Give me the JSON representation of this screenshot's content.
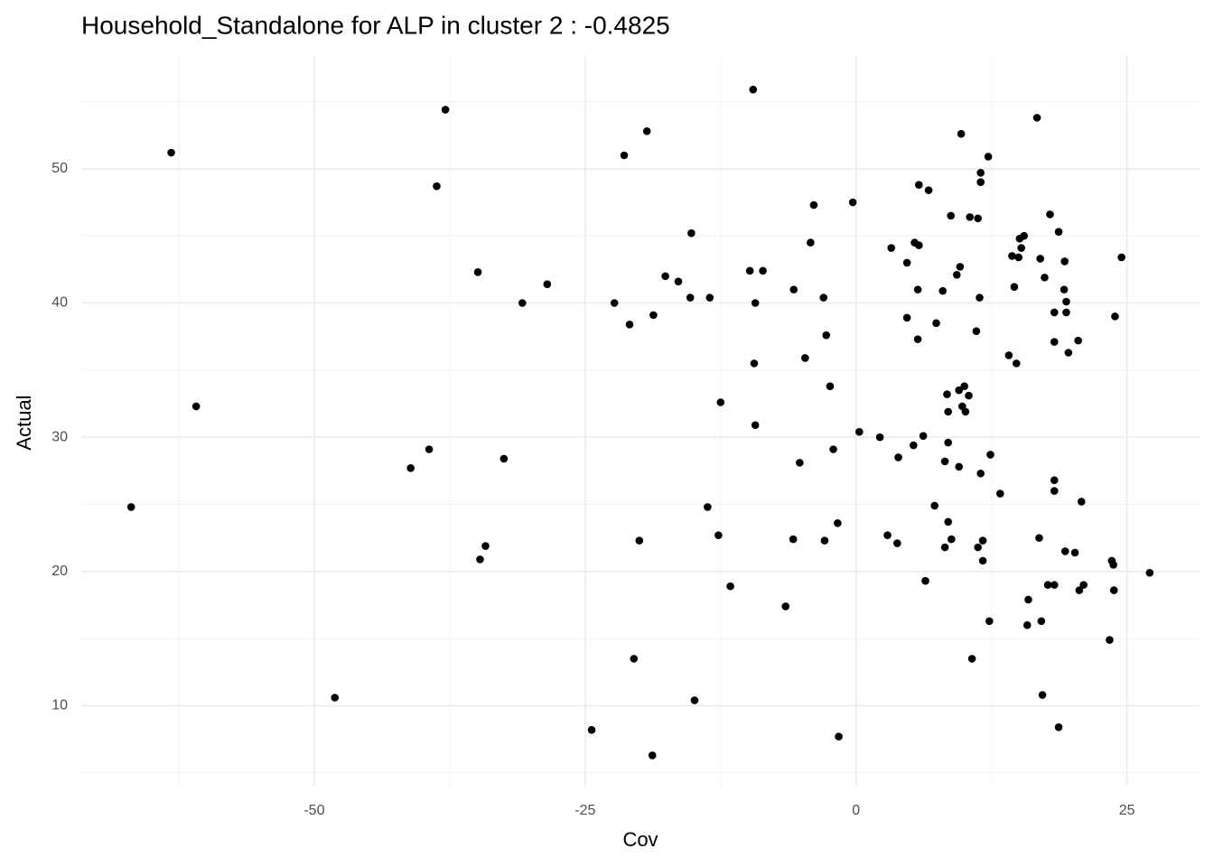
{
  "chart_data": {
    "type": "scatter",
    "title": "Household_Standalone for ALP in cluster 2 : -0.4825",
    "x_label": "Cov",
    "y_label": "Actual",
    "xlim": [
      -71.5,
      31.7
    ],
    "ylim": [
      4.04,
      58.4
    ],
    "xticks": [
      -50,
      -25,
      0,
      25
    ],
    "yticks": [
      10,
      20,
      30,
      40,
      50
    ],
    "x_minor_breaks": [
      -62.5,
      -37.5,
      -12.5,
      12.5
    ],
    "y_minor_breaks": [
      5,
      15,
      25,
      35,
      45,
      55
    ],
    "grid": true,
    "color": "#000000",
    "x": [
      -63.2,
      -60.9,
      -66.9,
      -48.1,
      -37.9,
      -38.7,
      -34.9,
      -30.8,
      -28.5,
      -41.1,
      -39.4,
      -32.5,
      -34.2,
      -34.7,
      -24.4,
      -21.4,
      -19.3,
      -22.3,
      -20.9,
      -18.7,
      -17.6,
      -16.4,
      -15.2,
      -15.3,
      -13.5,
      -20.5,
      -20.0,
      -18.8,
      -14.9,
      -13.7,
      -12.7,
      -12.5,
      -11.6,
      -9.5,
      -9.8,
      -8.6,
      -9.3,
      -9.4,
      -9.3,
      -5.75,
      -6.5,
      -5.8,
      -5.2,
      -4.7,
      -4.2,
      -3.9,
      -3.0,
      -2.75,
      -2.9,
      -2.4,
      -2.1,
      -1.7,
      -1.6,
      -0.3,
      0.3,
      2.2,
      2.9,
      3.25,
      3.8,
      3.9,
      4.7,
      4.7,
      5.3,
      5.4,
      5.8,
      5.7,
      5.7,
      5.8,
      6.7,
      6.2,
      6.4,
      7.25,
      7.4,
      8.0,
      8.2,
      8.2,
      8.4,
      8.5,
      8.5,
      8.5,
      8.75,
      8.8,
      9.3,
      9.6,
      9.5,
      9.5,
      9.7,
      9.8,
      10.1,
      10.0,
      10.4,
      10.5,
      10.7,
      11.1,
      11.25,
      11.25,
      11.5,
      11.5,
      11.4,
      11.5,
      11.7,
      11.7,
      12.2,
      12.3,
      12.4,
      13.3,
      14.1,
      14.4,
      14.6,
      14.8,
      15.0,
      15.1,
      15.25,
      15.5,
      15.8,
      15.9,
      16.7,
      16.9,
      17.0,
      17.1,
      17.2,
      17.4,
      17.7,
      17.9,
      18.3,
      18.3,
      18.3,
      18.3,
      18.3,
      18.7,
      18.7,
      19.2,
      19.25,
      19.3,
      19.4,
      19.4,
      19.6,
      20.2,
      20.5,
      20.6,
      20.8,
      21.0,
      23.4,
      23.6,
      23.75,
      23.8,
      23.9,
      24.5,
      27.1
    ],
    "values": [
      51.2,
      32.3,
      24.8,
      10.6,
      54.4,
      48.7,
      42.3,
      40.0,
      41.4,
      27.7,
      29.1,
      28.4,
      21.9,
      20.9,
      8.2,
      51.0,
      52.8,
      40.0,
      38.4,
      39.1,
      42.0,
      41.6,
      45.2,
      40.4,
      40.4,
      13.5,
      22.3,
      6.3,
      10.4,
      24.8,
      22.7,
      32.6,
      18.9,
      55.9,
      42.4,
      42.4,
      40.0,
      35.5,
      30.9,
      41.0,
      17.4,
      22.4,
      28.1,
      35.9,
      44.5,
      47.3,
      40.4,
      37.6,
      22.3,
      33.8,
      29.1,
      23.6,
      7.7,
      47.5,
      30.4,
      30.0,
      22.7,
      44.1,
      22.1,
      28.5,
      43.0,
      38.9,
      29.4,
      44.5,
      44.3,
      41.0,
      37.3,
      48.8,
      48.4,
      30.1,
      19.3,
      24.9,
      38.5,
      40.9,
      28.2,
      21.8,
      33.2,
      31.9,
      23.7,
      29.6,
      46.5,
      22.4,
      42.1,
      42.7,
      33.5,
      27.8,
      52.6,
      32.3,
      31.9,
      33.8,
      33.1,
      46.4,
      13.5,
      37.9,
      46.3,
      21.8,
      49.7,
      49.0,
      40.4,
      27.3,
      22.3,
      20.8,
      50.9,
      16.3,
      28.7,
      25.8,
      36.1,
      43.5,
      41.2,
      35.5,
      43.4,
      44.8,
      44.1,
      45.0,
      16.0,
      17.9,
      53.8,
      22.5,
      43.3,
      16.3,
      10.8,
      41.9,
      19.0,
      46.6,
      39.3,
      37.1,
      26.8,
      26.0,
      19.0,
      45.3,
      8.4,
      41.0,
      43.1,
      21.5,
      40.1,
      39.3,
      36.3,
      21.4,
      37.2,
      18.6,
      25.2,
      19.0,
      14.9,
      20.8,
      20.5,
      18.6,
      39.0,
      43.4,
      19.9
    ]
  }
}
